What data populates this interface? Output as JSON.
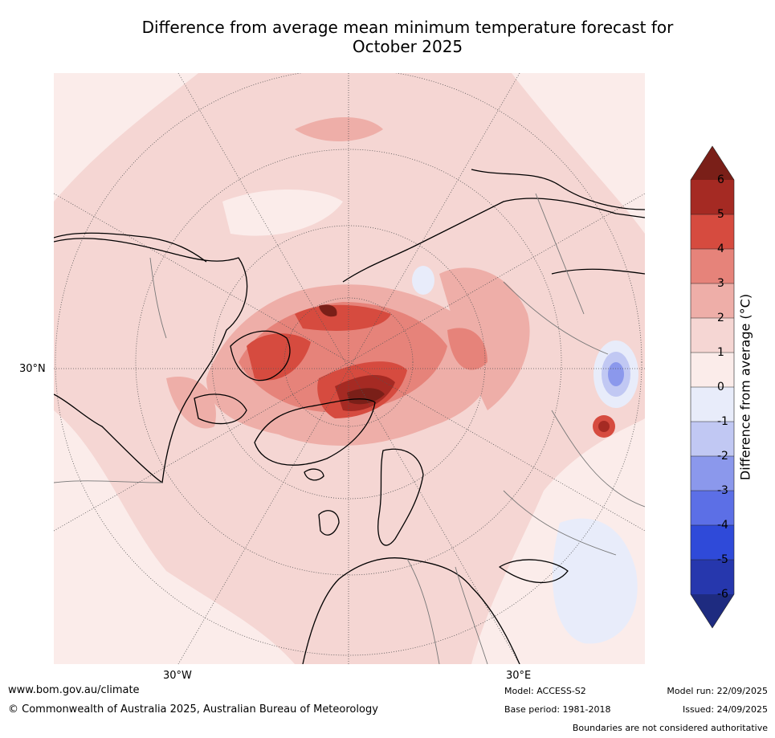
{
  "title_line1": "Difference from average mean minimum temperature forecast for",
  "title_line2": "October 2025",
  "map_labels": {
    "lat_30n": "30°N",
    "lon_30w": "30°W",
    "lon_30e": "30°E"
  },
  "colorbar": {
    "title": "Difference from average (°C)",
    "ticks": [
      "6",
      "5",
      "4",
      "3",
      "2",
      "1",
      "0",
      "-1",
      "-2",
      "-3",
      "-4",
      "-5",
      "-6"
    ],
    "colors": {
      "over": "#7a1f18",
      "c5_6": "#a52a23",
      "c4_5": "#d64b3f",
      "c3_4": "#e6837a",
      "c2_3": "#eeaea8",
      "c1_2": "#f5d6d3",
      "c0_1": "#fbecea",
      "cm1_0": "#e8ecfa",
      "cm2_m1": "#c1c8f3",
      "cm3_m2": "#8b98ec",
      "cm4_m3": "#5c6fe6",
      "cm5_m4": "#2f4ad9",
      "cm6_m5": "#2637ad",
      "under": "#1e2b80"
    }
  },
  "footer": {
    "website": "www.bom.gov.au/climate",
    "copyright": "© Commonwealth of Australia 2025, Australian Bureau of Meteorology",
    "model": "Model: ACCESS-S2",
    "base_period": "Base period: 1981-2018",
    "model_run": "Model run: 22/09/2025",
    "issued": "Issued: 24/09/2025",
    "boundaries": "Boundaries are not considered authoritative"
  }
}
